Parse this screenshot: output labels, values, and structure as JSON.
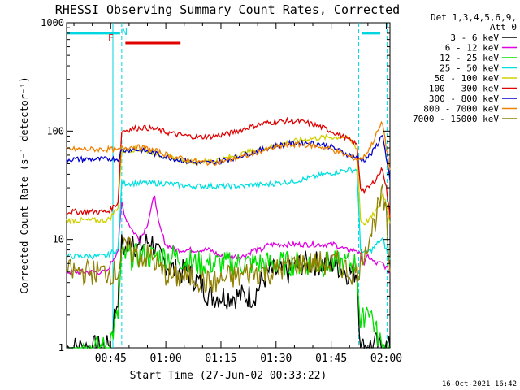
{
  "chart_data": {
    "type": "line",
    "title": "RHESSI Observing Summary Count Rates, Corrected",
    "xlabel": "Start Time (27-Jun-02 00:33:22)",
    "ylabel": "Corrected Count Rate (s⁻¹ detector⁻¹)",
    "yscale": "log",
    "ylim": [
      1,
      1000
    ],
    "xlim_minutes": [
      0,
      88
    ],
    "x_tick_labels": [
      "00:45",
      "01:00",
      "01:15",
      "01:30",
      "01:45",
      "02:00"
    ],
    "x_ticks_minutes": [
      12,
      27,
      42,
      57,
      72,
      87
    ],
    "y_tick_labels": [
      "1",
      "10",
      "100",
      "1000"
    ],
    "y_ticks": [
      1,
      10,
      100,
      1000
    ],
    "legend_header": [
      "Det 1,3,4,5,6,9,",
      "Att 0"
    ],
    "footer_date": "16-Oct-2021 16:42",
    "annotations": [
      {
        "label": "F",
        "color": "#e00000"
      },
      {
        "label": "N",
        "color": "#00d6e0"
      }
    ],
    "flags": {
      "night_marks_minutes": [
        0,
        15,
        80,
        95
      ],
      "night_y": 800,
      "flare_start_minutes": 16,
      "flare_end_minutes": 31,
      "flare_y": 650
    },
    "data_gaps_minutes": [
      [
        12,
        15.5
      ],
      [
        79.5,
        80.5
      ]
    ],
    "series": [
      {
        "name": "3 - 6 keV",
        "color": "#000000",
        "points": [
          [
            0,
            1
          ],
          [
            11,
            1
          ],
          [
            12,
            1.3
          ],
          [
            14,
            3
          ],
          [
            15,
            9
          ],
          [
            16,
            8
          ],
          [
            18,
            11
          ],
          [
            19,
            8
          ],
          [
            21,
            9
          ],
          [
            23,
            10
          ],
          [
            25,
            7
          ],
          [
            27,
            6
          ],
          [
            30,
            5
          ],
          [
            33,
            5
          ],
          [
            36,
            4
          ],
          [
            39,
            3
          ],
          [
            42,
            3
          ],
          [
            45,
            3
          ],
          [
            48,
            3
          ],
          [
            51,
            3
          ],
          [
            53,
            4
          ],
          [
            55,
            5
          ],
          [
            58,
            5
          ],
          [
            61,
            5
          ],
          [
            64,
            6
          ],
          [
            67,
            6
          ],
          [
            70,
            6
          ],
          [
            73,
            6
          ],
          [
            76,
            5
          ],
          [
            79,
            5
          ],
          [
            80,
            1
          ],
          [
            81,
            1
          ],
          [
            82,
            1.1
          ],
          [
            83,
            1
          ],
          [
            84,
            1.1
          ],
          [
            85,
            1
          ],
          [
            86,
            1
          ],
          [
            88,
            1
          ]
        ]
      },
      {
        "name": "6 - 12 keV",
        "color": "#e000e0",
        "points": [
          [
            0,
            5
          ],
          [
            11,
            5
          ],
          [
            12,
            6
          ],
          [
            14,
            8
          ],
          [
            15,
            22
          ],
          [
            16,
            16
          ],
          [
            18,
            12
          ],
          [
            20,
            10
          ],
          [
            22,
            14
          ],
          [
            24,
            26
          ],
          [
            25,
            14
          ],
          [
            27,
            9
          ],
          [
            30,
            8
          ],
          [
            33,
            8
          ],
          [
            36,
            8
          ],
          [
            39,
            8
          ],
          [
            42,
            7
          ],
          [
            45,
            7
          ],
          [
            48,
            7
          ],
          [
            51,
            8
          ],
          [
            53,
            8
          ],
          [
            55,
            9
          ],
          [
            58,
            9
          ],
          [
            61,
            9
          ],
          [
            64,
            9
          ],
          [
            67,
            9
          ],
          [
            70,
            9
          ],
          [
            73,
            9
          ],
          [
            76,
            8
          ],
          [
            79,
            8
          ],
          [
            80,
            7
          ],
          [
            81,
            6
          ],
          [
            82,
            7
          ],
          [
            84,
            6
          ],
          [
            86,
            6
          ],
          [
            88,
            5
          ]
        ]
      },
      {
        "name": "12 - 25 keV",
        "color": "#00e000",
        "points": [
          [
            0,
            1
          ],
          [
            11,
            1
          ],
          [
            12,
            1.2
          ],
          [
            14,
            2
          ],
          [
            15,
            7
          ],
          [
            17,
            7
          ],
          [
            20,
            7
          ],
          [
            23,
            7
          ],
          [
            26,
            7
          ],
          [
            29,
            7
          ],
          [
            32,
            6.5
          ],
          [
            35,
            6
          ],
          [
            38,
            6
          ],
          [
            41,
            6
          ],
          [
            44,
            6
          ],
          [
            47,
            6
          ],
          [
            50,
            6
          ],
          [
            53,
            6
          ],
          [
            56,
            6
          ],
          [
            59,
            6
          ],
          [
            62,
            6
          ],
          [
            65,
            6
          ],
          [
            68,
            6
          ],
          [
            71,
            6
          ],
          [
            74,
            6
          ],
          [
            77,
            6
          ],
          [
            79,
            6
          ],
          [
            80,
            1.5
          ],
          [
            81,
            2
          ],
          [
            82,
            2.5
          ],
          [
            83,
            2
          ],
          [
            84,
            1.5
          ],
          [
            85,
            1.2
          ],
          [
            86,
            1
          ],
          [
            88,
            1
          ]
        ]
      },
      {
        "name": "25 - 50 keV",
        "color": "#00e0e0",
        "points": [
          [
            0,
            7
          ],
          [
            11,
            7
          ],
          [
            12,
            7.5
          ],
          [
            14,
            8
          ],
          [
            15,
            33
          ],
          [
            18,
            33
          ],
          [
            21,
            33
          ],
          [
            24,
            33
          ],
          [
            27,
            33
          ],
          [
            30,
            32
          ],
          [
            33,
            31
          ],
          [
            36,
            31
          ],
          [
            39,
            31
          ],
          [
            42,
            31
          ],
          [
            45,
            31
          ],
          [
            48,
            31
          ],
          [
            51,
            32
          ],
          [
            54,
            32
          ],
          [
            57,
            33
          ],
          [
            60,
            34
          ],
          [
            63,
            35
          ],
          [
            66,
            37
          ],
          [
            69,
            39
          ],
          [
            72,
            41
          ],
          [
            75,
            43
          ],
          [
            77,
            44
          ],
          [
            79,
            44
          ],
          [
            80,
            8
          ],
          [
            81,
            7.5
          ],
          [
            83,
            8
          ],
          [
            85,
            9.5
          ],
          [
            86,
            10
          ],
          [
            87,
            8
          ],
          [
            88,
            6.5
          ]
        ]
      },
      {
        "name": "50 - 100 keV",
        "color": "#d0d000",
        "points": [
          [
            0,
            15
          ],
          [
            11,
            15
          ],
          [
            12,
            16
          ],
          [
            14,
            20
          ],
          [
            15,
            65
          ],
          [
            18,
            68
          ],
          [
            21,
            67
          ],
          [
            24,
            63
          ],
          [
            27,
            58
          ],
          [
            30,
            55
          ],
          [
            33,
            53
          ],
          [
            36,
            52
          ],
          [
            39,
            53
          ],
          [
            42,
            55
          ],
          [
            45,
            58
          ],
          [
            48,
            62
          ],
          [
            51,
            66
          ],
          [
            54,
            70
          ],
          [
            57,
            74
          ],
          [
            60,
            78
          ],
          [
            63,
            82
          ],
          [
            66,
            85
          ],
          [
            69,
            87
          ],
          [
            72,
            88
          ],
          [
            75,
            88
          ],
          [
            77,
            84
          ],
          [
            79,
            70
          ],
          [
            80,
            15
          ],
          [
            81,
            14
          ],
          [
            83,
            16
          ],
          [
            85,
            20
          ],
          [
            86,
            26
          ],
          [
            87,
            22
          ],
          [
            88,
            14
          ]
        ]
      },
      {
        "name": "100 - 300 keV",
        "color": "#e00000",
        "points": [
          [
            0,
            18
          ],
          [
            11,
            18
          ],
          [
            12,
            19
          ],
          [
            14,
            22
          ],
          [
            15,
            100
          ],
          [
            18,
            105
          ],
          [
            21,
            108
          ],
          [
            24,
            104
          ],
          [
            27,
            98
          ],
          [
            30,
            93
          ],
          [
            33,
            90
          ],
          [
            36,
            88
          ],
          [
            39,
            89
          ],
          [
            42,
            92
          ],
          [
            45,
            97
          ],
          [
            48,
            104
          ],
          [
            51,
            112
          ],
          [
            54,
            118
          ],
          [
            57,
            122
          ],
          [
            60,
            124
          ],
          [
            63,
            123
          ],
          [
            66,
            118
          ],
          [
            69,
            110
          ],
          [
            72,
            100
          ],
          [
            75,
            90
          ],
          [
            77,
            82
          ],
          [
            79,
            75
          ],
          [
            80,
            30
          ],
          [
            81,
            28
          ],
          [
            83,
            32
          ],
          [
            85,
            40
          ],
          [
            86,
            45
          ],
          [
            87,
            30
          ],
          [
            88,
            16
          ]
        ]
      },
      {
        "name": "300 - 800 keV",
        "color": "#0000d0",
        "points": [
          [
            0,
            55
          ],
          [
            11,
            55
          ],
          [
            12,
            56
          ],
          [
            14,
            55
          ],
          [
            15,
            66
          ],
          [
            18,
            68
          ],
          [
            21,
            66
          ],
          [
            24,
            62
          ],
          [
            27,
            58
          ],
          [
            30,
            55
          ],
          [
            33,
            52
          ],
          [
            36,
            51
          ],
          [
            39,
            51
          ],
          [
            42,
            53
          ],
          [
            45,
            56
          ],
          [
            48,
            60
          ],
          [
            51,
            64
          ],
          [
            54,
            69
          ],
          [
            57,
            73
          ],
          [
            60,
            76
          ],
          [
            63,
            78
          ],
          [
            66,
            78
          ],
          [
            69,
            76
          ],
          [
            72,
            72
          ],
          [
            75,
            64
          ],
          [
            77,
            60
          ],
          [
            79,
            57
          ],
          [
            80,
            55
          ],
          [
            81,
            54
          ],
          [
            83,
            62
          ],
          [
            85,
            80
          ],
          [
            86,
            95
          ],
          [
            87,
            55
          ],
          [
            88,
            35
          ]
        ]
      },
      {
        "name": "800 - 7000 keV",
        "color": "#f08000",
        "points": [
          [
            0,
            68
          ],
          [
            11,
            68
          ],
          [
            12,
            68
          ],
          [
            14,
            66
          ],
          [
            15,
            70
          ],
          [
            18,
            72
          ],
          [
            21,
            70
          ],
          [
            24,
            66
          ],
          [
            27,
            61
          ],
          [
            30,
            57
          ],
          [
            33,
            54
          ],
          [
            36,
            52
          ],
          [
            39,
            51
          ],
          [
            42,
            52
          ],
          [
            45,
            55
          ],
          [
            48,
            58
          ],
          [
            51,
            62
          ],
          [
            54,
            67
          ],
          [
            57,
            71
          ],
          [
            60,
            74
          ],
          [
            63,
            75
          ],
          [
            66,
            74
          ],
          [
            69,
            72
          ],
          [
            72,
            68
          ],
          [
            75,
            62
          ],
          [
            77,
            58
          ],
          [
            79,
            55
          ],
          [
            80,
            55
          ],
          [
            81,
            58
          ],
          [
            83,
            75
          ],
          [
            85,
            105
          ],
          [
            86,
            120
          ],
          [
            87,
            70
          ],
          [
            88,
            44
          ]
        ]
      },
      {
        "name": "7000 - 15000 keV",
        "color": "#908000",
        "points": [
          [
            0,
            5
          ],
          [
            11,
            5
          ],
          [
            12,
            5
          ],
          [
            14,
            5
          ],
          [
            15,
            8
          ],
          [
            17,
            8
          ],
          [
            20,
            7
          ],
          [
            23,
            7
          ],
          [
            26,
            5
          ],
          [
            29,
            4.5
          ],
          [
            32,
            4.5
          ],
          [
            35,
            4.5
          ],
          [
            38,
            4
          ],
          [
            41,
            4
          ],
          [
            44,
            4.5
          ],
          [
            47,
            4.5
          ],
          [
            50,
            5
          ],
          [
            53,
            5
          ],
          [
            56,
            5
          ],
          [
            59,
            5.5
          ],
          [
            62,
            6
          ],
          [
            65,
            6
          ],
          [
            68,
            6
          ],
          [
            71,
            6
          ],
          [
            74,
            6
          ],
          [
            77,
            5
          ],
          [
            79,
            5
          ],
          [
            80,
            6
          ],
          [
            81,
            8
          ],
          [
            83,
            12
          ],
          [
            85,
            20
          ],
          [
            86,
            25
          ],
          [
            87,
            15
          ],
          [
            88,
            5
          ]
        ]
      }
    ]
  }
}
